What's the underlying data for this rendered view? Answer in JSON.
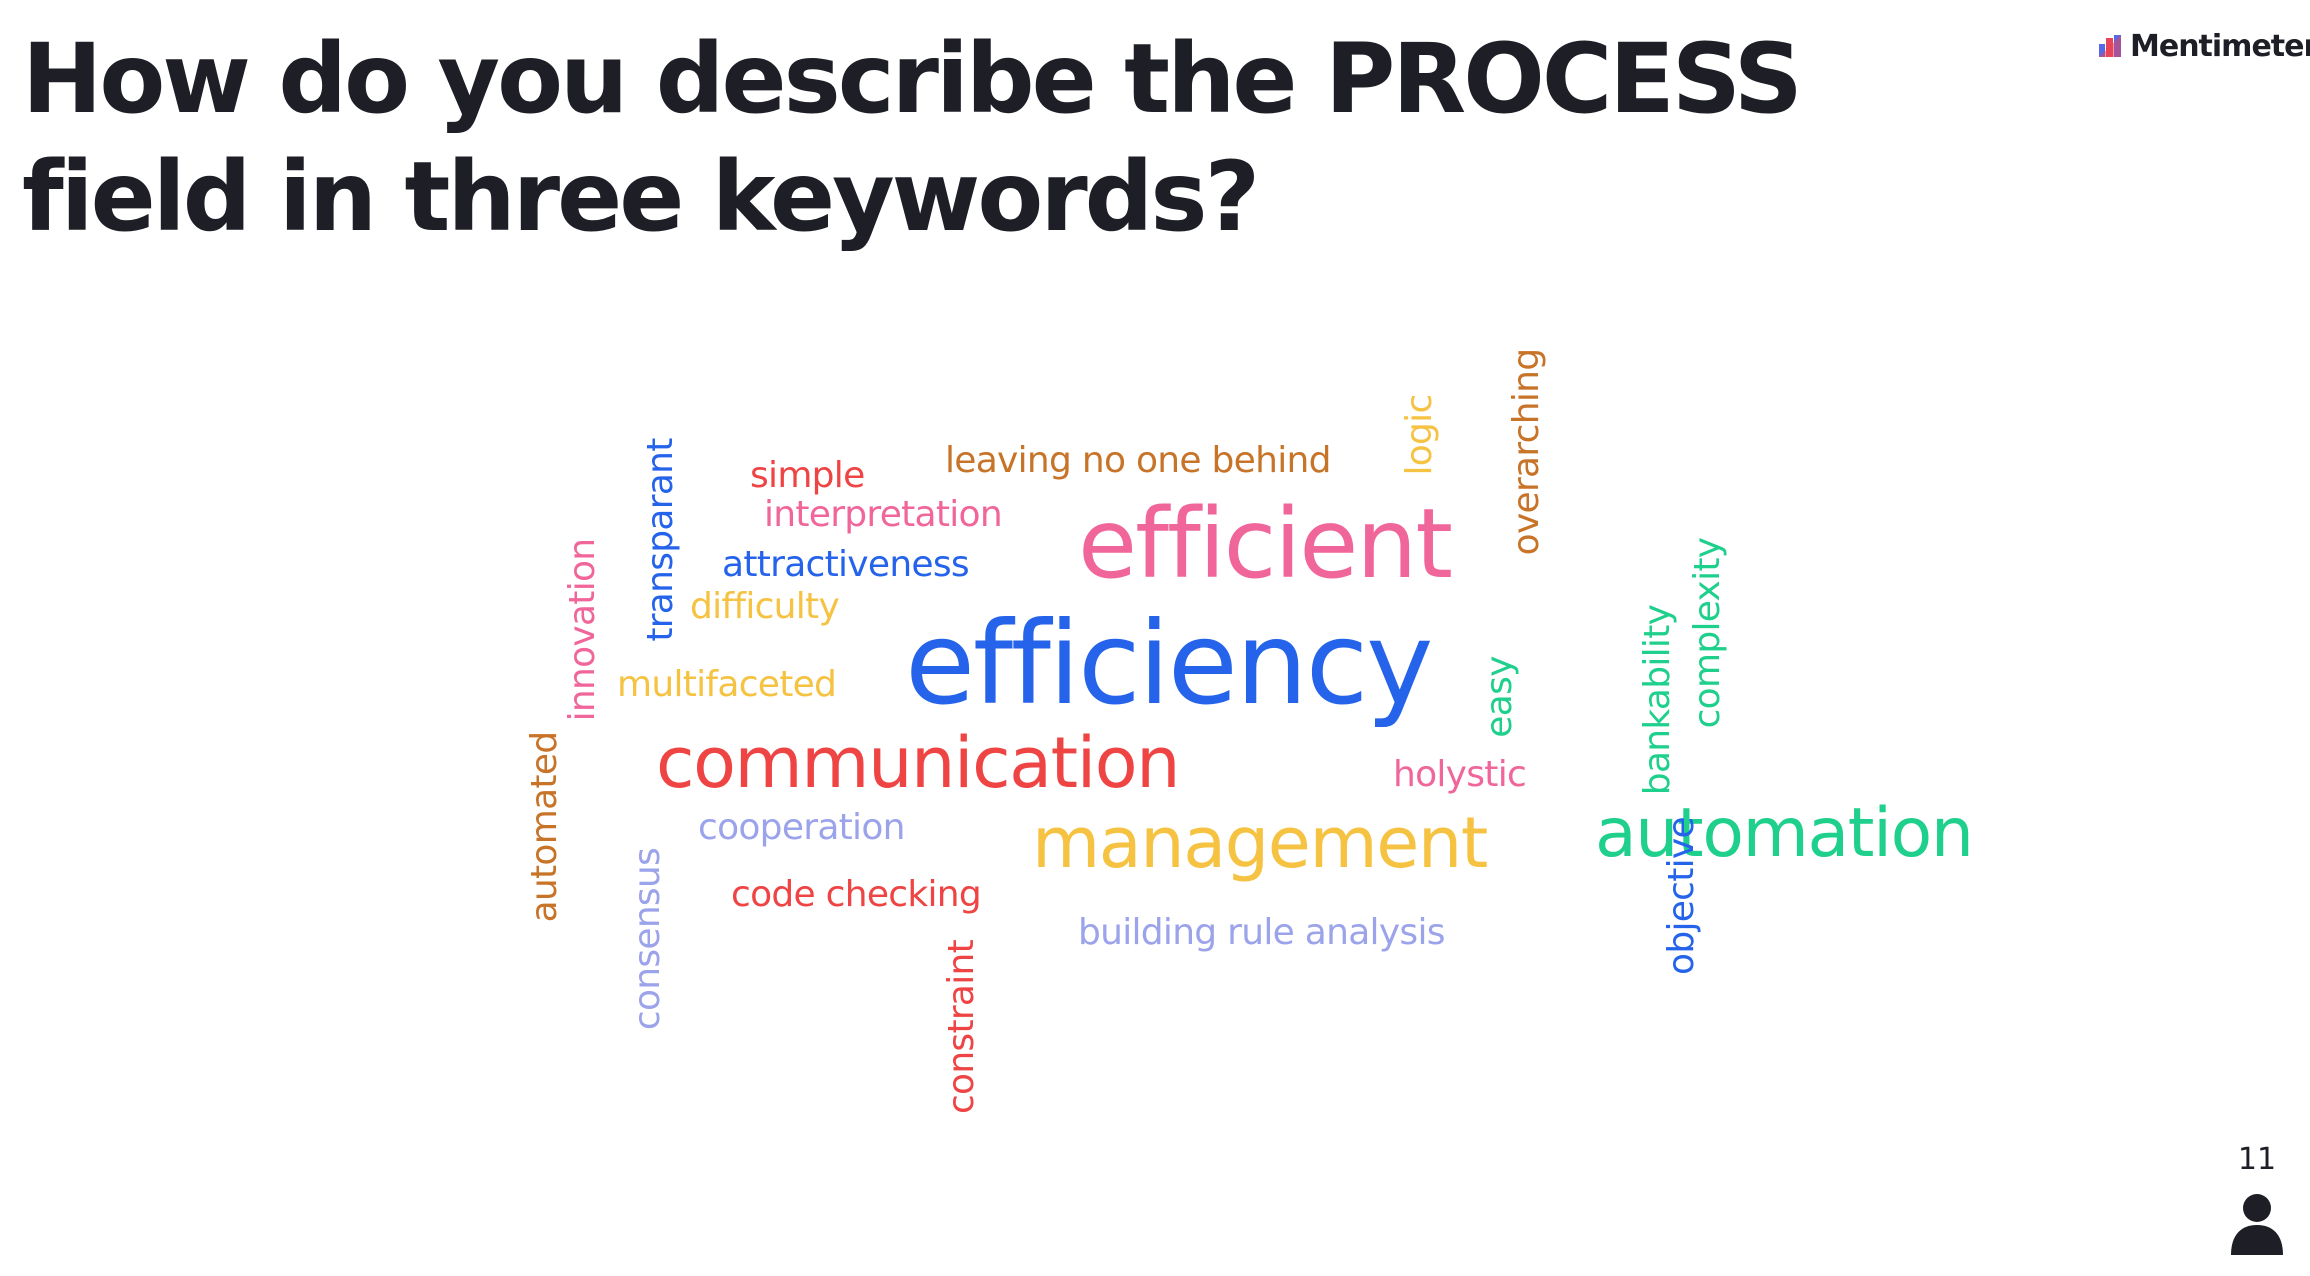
{
  "slide": {
    "question": "How do you describe the PROCESS field in three keywords?",
    "brand": "Mentimeter",
    "participant_count": "11"
  },
  "icons": {
    "brand_logo": "mentimeter-logo-icon",
    "participants": "person-icon"
  },
  "colors": {
    "text": "#1d1e26",
    "blue": "#2563eb",
    "pink": "#f0669a",
    "red": "#ef4444",
    "yellow": "#f5c242",
    "orange": "#c87428",
    "green": "#1fcf8c",
    "lavender": "#9ba3ea"
  },
  "word_cloud": {
    "words": [
      {
        "text": "efficiency",
        "color": "blue"
      },
      {
        "text": "efficient",
        "color": "pink"
      },
      {
        "text": "communication",
        "color": "red"
      },
      {
        "text": "management",
        "color": "yellow"
      },
      {
        "text": "automation",
        "color": "green"
      },
      {
        "text": "leaving no one behind",
        "color": "orange"
      },
      {
        "text": "simple",
        "color": "red"
      },
      {
        "text": "interpretation",
        "color": "pink"
      },
      {
        "text": "attractiveness",
        "color": "blue"
      },
      {
        "text": "difficulty",
        "color": "yellow"
      },
      {
        "text": "multifaceted",
        "color": "yellow"
      },
      {
        "text": "cooperation",
        "color": "lavender"
      },
      {
        "text": "code checking",
        "color": "red"
      },
      {
        "text": "building rule analysis",
        "color": "lavender"
      },
      {
        "text": "holystic",
        "color": "pink"
      },
      {
        "text": "transparant",
        "color": "blue"
      },
      {
        "text": "innovation",
        "color": "pink"
      },
      {
        "text": "automated",
        "color": "orange"
      },
      {
        "text": "consensus",
        "color": "lavender"
      },
      {
        "text": "constraint",
        "color": "red"
      },
      {
        "text": "logic",
        "color": "yellow"
      },
      {
        "text": "overarching",
        "color": "orange"
      },
      {
        "text": "easy",
        "color": "green"
      },
      {
        "text": "bankability",
        "color": "green"
      },
      {
        "text": "complexity",
        "color": "green"
      },
      {
        "text": "objective",
        "color": "blue"
      }
    ]
  }
}
